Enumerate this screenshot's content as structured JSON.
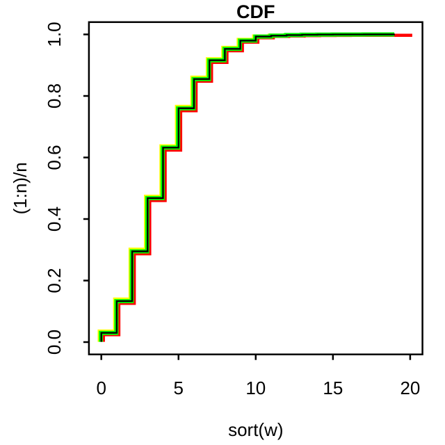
{
  "chart_data": {
    "type": "line",
    "subtype": "step-ecdf",
    "title": "CDF",
    "xlabel": "sort(w)",
    "ylabel": "(1:n)/n",
    "xlim": [
      0,
      20
    ],
    "ylim": [
      0,
      1
    ],
    "grid": false,
    "legend_position": "none",
    "x_ticks": [
      0,
      5,
      10,
      15,
      20
    ],
    "x_tick_labels": [
      "0",
      "5",
      "10",
      "15",
      "20"
    ],
    "y_ticks": [
      0.0,
      0.2,
      0.4,
      0.6,
      0.8,
      1.0
    ],
    "y_tick_labels": [
      "0.0",
      "0.2",
      "0.4",
      "0.6",
      "0.8",
      "1.0"
    ],
    "step_note": "step curves rise at integer x; levels[i] is cumulative fraction reached at x=i",
    "series": [
      {
        "name": "yellow-cdf",
        "color": "#FFFF00",
        "width": 4.5,
        "dx": -3,
        "levels": [
          0.036,
          0.14,
          0.302,
          0.474,
          0.638,
          0.766,
          0.861,
          0.921,
          0.958,
          0.984,
          0.995,
          0.9975,
          0.9987,
          0.9994,
          0.9997,
          0.9998,
          0.9999,
          1.0,
          1.0,
          1.0
        ]
      },
      {
        "name": "red-cdf",
        "color": "#FF0000",
        "width": 4.5,
        "dx": 3,
        "levels": [
          0.024,
          0.126,
          0.287,
          0.46,
          0.624,
          0.752,
          0.848,
          0.909,
          0.947,
          0.975,
          0.989,
          0.9935,
          0.995,
          0.996,
          0.9965,
          0.9968,
          0.997,
          0.997,
          0.997,
          0.997,
          0.997
        ]
      },
      {
        "name": "green-cdf",
        "color": "#00FF00",
        "width": 6,
        "dx": -0.6,
        "levels": [
          0.03,
          0.133,
          0.295,
          0.468,
          0.632,
          0.76,
          0.855,
          0.916,
          0.953,
          0.98,
          0.993,
          0.996,
          0.998,
          0.999,
          0.9995,
          0.9997,
          0.9998,
          0.9999,
          1.0,
          1.0
        ]
      },
      {
        "name": "black-cdf",
        "color": "#000000",
        "width": 2.4,
        "dx": 0,
        "levels": [
          0.03,
          0.133,
          0.295,
          0.468,
          0.632,
          0.76,
          0.855,
          0.916,
          0.953,
          0.98,
          0.993,
          0.996,
          0.998,
          0.999,
          0.9995,
          0.9997,
          0.9998,
          0.9999,
          1.0,
          1.0
        ]
      }
    ]
  }
}
